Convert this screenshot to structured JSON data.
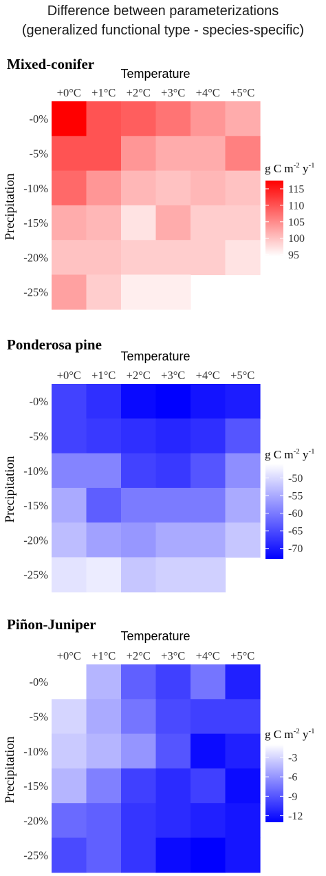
{
  "figure": {
    "title_line1": "Difference between parameterizations",
    "title_line2": "(generalized functional type - species-specific)"
  },
  "chart_data": [
    {
      "type": "heatmap",
      "title": "Mixed-conifer",
      "xlabel": "Temperature",
      "ylabel": "Precipitation",
      "x": [
        "+0°C",
        "+1°C",
        "+2°C",
        "+3°C",
        "+4°C",
        "+5°C"
      ],
      "y": [
        "-0%",
        "-5%",
        "-10%",
        "-15%",
        "-20%",
        "-25%"
      ],
      "values": [
        [
          118,
          110,
          109,
          107,
          104,
          102
        ],
        [
          110,
          110,
          104,
          102,
          102,
          106
        ],
        [
          108,
          104,
          101,
          100,
          101,
          100
        ],
        [
          102,
          101,
          97,
          102,
          99,
          99
        ],
        [
          100,
          100,
          99,
          99,
          99,
          97
        ],
        [
          103,
          99,
          96,
          96,
          null,
          null
        ]
      ],
      "legend": {
        "title_base": "g C m",
        "title_sup1": "-2",
        "title_mid": " y",
        "title_sup2": "-1",
        "ticks": [
          115,
          110,
          105,
          100,
          95
        ],
        "range": [
          94.5,
          117.5
        ]
      },
      "colors": {
        "high": "#ff0000",
        "low": "#ffffff"
      }
    },
    {
      "type": "heatmap",
      "title": "Ponderosa pine",
      "xlabel": "Temperature",
      "ylabel": "Precipitation",
      "x": [
        "+0°C",
        "+1°C",
        "+2°C",
        "+3°C",
        "+4°C",
        "+5°C"
      ],
      "y": [
        "-0%",
        "-5%",
        "-10%",
        "-15%",
        "-20%",
        "-25%"
      ],
      "values": [
        [
          -66,
          -68,
          -72,
          -73,
          -71,
          -70
        ],
        [
          -66,
          -67,
          -68,
          -69,
          -68,
          -64
        ],
        [
          -59,
          -59,
          -66,
          -67,
          -64,
          -58
        ],
        [
          -55,
          -63,
          -60,
          -60,
          -60,
          -55
        ],
        [
          -53,
          -56,
          -57,
          -55,
          -55,
          -52
        ],
        [
          -49,
          -48,
          -52,
          -51,
          -51,
          null
        ]
      ],
      "legend": {
        "title_base": "g C m",
        "title_sup1": "-2",
        "title_mid": " y",
        "title_sup2": "-1",
        "ticks": [
          -50,
          -55,
          -60,
          -65,
          -70
        ],
        "range": [
          -73,
          -46
        ]
      },
      "colors": {
        "high": "#ffffff",
        "low": "#0000ff"
      }
    },
    {
      "type": "heatmap",
      "title": "Piñon-Juniper",
      "xlabel": "Temperature",
      "ylabel": "Precipitation",
      "x": [
        "+0°C",
        "+1°C",
        "+2°C",
        "+3°C",
        "+4°C",
        "+5°C"
      ],
      "y": [
        "-0%",
        "-5%",
        "-10%",
        "-15%",
        "-20%",
        "-25%"
      ],
      "values": [
        [
          null,
          -4.5,
          -8.5,
          -10,
          -7.5,
          -11.5
        ],
        [
          -3,
          -5,
          -7.5,
          -9.5,
          -10,
          -10
        ],
        [
          -3.5,
          -4.5,
          -6,
          -9,
          -12.5,
          -11.5
        ],
        [
          -4.5,
          -7,
          -10,
          -11,
          -10,
          -12.5
        ],
        [
          -8,
          -8.5,
          -10.5,
          -11,
          -11.5,
          -12
        ],
        [
          -9.5,
          -8.5,
          -10.5,
          -12.5,
          -13,
          -12
        ]
      ],
      "legend": {
        "title_base": "g C m",
        "title_sup1": "-2",
        "title_mid": " y",
        "title_sup2": "-1",
        "ticks": [
          -3,
          -6,
          -9,
          -12
        ],
        "range": [
          -13,
          -1
        ]
      },
      "colors": {
        "high": "#ffffff",
        "low": "#0000ff"
      }
    }
  ]
}
